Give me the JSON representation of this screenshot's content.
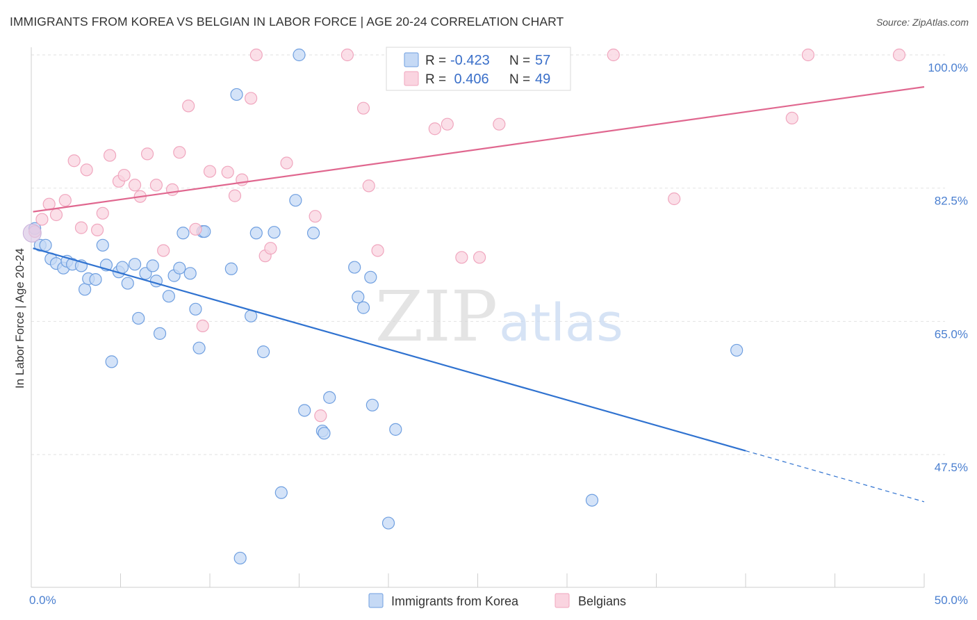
{
  "header": {
    "title": "IMMIGRANTS FROM KOREA VS BELGIAN IN LABOR FORCE | AGE 20-24 CORRELATION CHART",
    "source": "Source: ZipAtlas.com"
  },
  "watermark": {
    "zip": "ZIP",
    "atlas": "atlas"
  },
  "stats": [
    {
      "r_label": "R = ",
      "r_value": "-0.423",
      "n_label": "N = ",
      "n_value": "57",
      "color": "#6f9fe0"
    },
    {
      "r_label": "R = ",
      "r_value": " 0.406",
      "n_label": "N = ",
      "n_value": "49",
      "color": "#f0a6be"
    }
  ],
  "chart_data": {
    "type": "scatter",
    "title": "IMMIGRANTS FROM KOREA VS BELGIAN IN LABOR FORCE | AGE 20-24 CORRELATION CHART",
    "xlabel": "",
    "ylabel": "In Labor Force | Age 20-24",
    "xlim": [
      0,
      50
    ],
    "ylim": [
      32,
      102
    ],
    "x_tick_labels": [
      "0.0%",
      "50.0%"
    ],
    "y_ticks": [
      47.5,
      65.0,
      82.5,
      100.0
    ],
    "y_tick_labels": [
      "47.5%",
      "65.0%",
      "82.5%",
      "100.0%"
    ],
    "grid": true,
    "legend_position": "bottom",
    "series": [
      {
        "name": "Immigrants from Korea",
        "color": "#6f9fe0",
        "fill": "#c5d9f5",
        "trend": {
          "x0": 0.1,
          "y0": 74.6,
          "x1": 40.0,
          "y1": 48.0,
          "dash_x1": 50.0,
          "dash_y1": 41.3
        },
        "points": [
          [
            0.2,
            77.2
          ],
          [
            0.5,
            75.0
          ],
          [
            0.8,
            75.0
          ],
          [
            1.1,
            73.2
          ],
          [
            1.4,
            72.6
          ],
          [
            1.8,
            72.0
          ],
          [
            2.0,
            72.9
          ],
          [
            2.3,
            72.5
          ],
          [
            2.8,
            72.3
          ],
          [
            3.0,
            69.2
          ],
          [
            3.2,
            70.6
          ],
          [
            3.6,
            70.5
          ],
          [
            4.0,
            75.0
          ],
          [
            4.2,
            72.4
          ],
          [
            4.5,
            59.7
          ],
          [
            4.9,
            71.5
          ],
          [
            5.1,
            72.1
          ],
          [
            5.4,
            70.0
          ],
          [
            5.8,
            72.5
          ],
          [
            6.0,
            65.4
          ],
          [
            6.4,
            71.3
          ],
          [
            6.8,
            72.3
          ],
          [
            7.0,
            70.3
          ],
          [
            7.2,
            63.4
          ],
          [
            7.7,
            68.3
          ],
          [
            8.0,
            71.0
          ],
          [
            8.3,
            72.0
          ],
          [
            8.5,
            76.6
          ],
          [
            8.9,
            71.3
          ],
          [
            9.2,
            66.6
          ],
          [
            9.4,
            61.5
          ],
          [
            9.6,
            76.8
          ],
          [
            9.7,
            76.8
          ],
          [
            11.2,
            71.9
          ],
          [
            11.5,
            94.8
          ],
          [
            11.7,
            33.9
          ],
          [
            12.3,
            65.7
          ],
          [
            12.6,
            76.6
          ],
          [
            13.0,
            61.0
          ],
          [
            13.6,
            76.7
          ],
          [
            14.0,
            42.5
          ],
          [
            14.8,
            80.9
          ],
          [
            15.0,
            100.0
          ],
          [
            15.3,
            53.3
          ],
          [
            15.8,
            76.6
          ],
          [
            16.3,
            50.6
          ],
          [
            16.4,
            50.3
          ],
          [
            16.7,
            55.0
          ],
          [
            18.1,
            72.1
          ],
          [
            18.3,
            68.2
          ],
          [
            18.6,
            66.8
          ],
          [
            19.0,
            70.8
          ],
          [
            19.1,
            54.0
          ],
          [
            20.0,
            38.5
          ],
          [
            20.4,
            50.8
          ],
          [
            31.4,
            41.5
          ],
          [
            39.5,
            61.2
          ]
        ]
      },
      {
        "name": "Belgians",
        "color": "#f0a6be",
        "fill": "#fad4e0",
        "trend": {
          "x0": 0.1,
          "y0": 79.4,
          "x1": 50.0,
          "y1": 95.8
        },
        "points": [
          [
            0.2,
            76.8
          ],
          [
            0.6,
            78.4
          ],
          [
            1.0,
            80.4
          ],
          [
            1.4,
            79.0
          ],
          [
            1.9,
            80.9
          ],
          [
            2.4,
            86.1
          ],
          [
            2.8,
            77.3
          ],
          [
            3.1,
            84.9
          ],
          [
            3.7,
            77.0
          ],
          [
            4.0,
            79.2
          ],
          [
            4.4,
            86.8
          ],
          [
            4.9,
            83.4
          ],
          [
            5.2,
            84.2
          ],
          [
            5.8,
            82.9
          ],
          [
            6.1,
            81.4
          ],
          [
            6.5,
            87.0
          ],
          [
            7.0,
            82.9
          ],
          [
            7.4,
            74.3
          ],
          [
            7.9,
            82.3
          ],
          [
            8.3,
            87.2
          ],
          [
            8.8,
            93.3
          ],
          [
            9.2,
            77.1
          ],
          [
            9.6,
            64.4
          ],
          [
            10.0,
            84.7
          ],
          [
            11.0,
            84.6
          ],
          [
            11.4,
            81.5
          ],
          [
            11.8,
            83.6
          ],
          [
            12.3,
            94.3
          ],
          [
            12.6,
            100.0
          ],
          [
            13.1,
            73.6
          ],
          [
            13.4,
            74.6
          ],
          [
            14.3,
            85.8
          ],
          [
            15.9,
            78.8
          ],
          [
            16.2,
            52.6
          ],
          [
            17.7,
            100.0
          ],
          [
            18.6,
            93.0
          ],
          [
            18.9,
            82.8
          ],
          [
            19.4,
            74.3
          ],
          [
            22.6,
            90.3
          ],
          [
            23.3,
            90.9
          ],
          [
            24.1,
            73.4
          ],
          [
            25.1,
            73.4
          ],
          [
            26.2,
            90.9
          ],
          [
            27.5,
            100.0
          ],
          [
            32.6,
            100.0
          ],
          [
            36.0,
            81.1
          ],
          [
            42.6,
            91.7
          ],
          [
            43.5,
            100.0
          ],
          [
            48.6,
            100.0
          ]
        ]
      }
    ]
  }
}
